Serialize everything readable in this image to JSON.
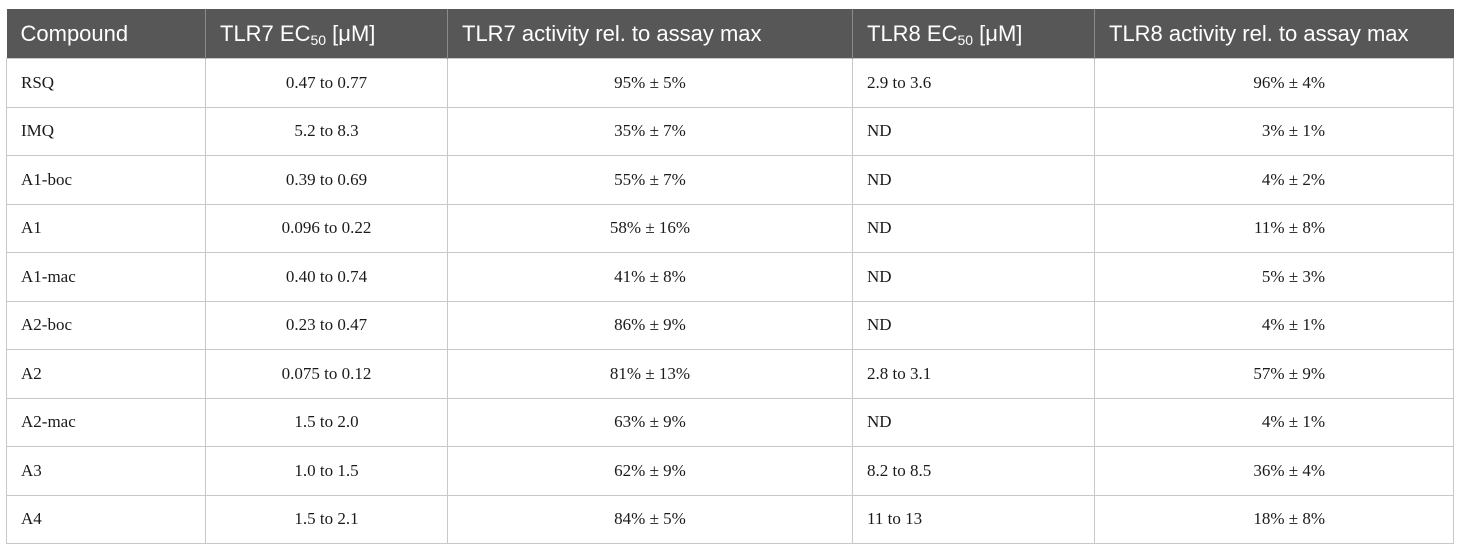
{
  "table": {
    "headers": [
      {
        "text": "Compound",
        "sub": "",
        "suffix": ""
      },
      {
        "text": "TLR7 EC",
        "sub": "50",
        "suffix": " [μM]"
      },
      {
        "text": "TLR7 activity rel. to assay max",
        "sub": "",
        "suffix": ""
      },
      {
        "text": "TLR8 EC",
        "sub": "50",
        "suffix": " [μM]"
      },
      {
        "text": "TLR8 activity rel. to assay max",
        "sub": "",
        "suffix": ""
      }
    ],
    "rows": [
      {
        "compound": "RSQ",
        "tlr7_ec50": "0.47 to 0.77",
        "tlr7_activity": "95% ± 5%",
        "tlr8_ec50": "2.9 to 3.6",
        "tlr8_activity": "96% ± 4%"
      },
      {
        "compound": "IMQ",
        "tlr7_ec50": "5.2 to 8.3",
        "tlr7_activity": "35% ± 7%",
        "tlr8_ec50": "ND",
        "tlr8_activity": "3% ± 1%"
      },
      {
        "compound": "A1-boc",
        "tlr7_ec50": "0.39 to 0.69",
        "tlr7_activity": "55% ± 7%",
        "tlr8_ec50": "ND",
        "tlr8_activity": "4% ± 2%"
      },
      {
        "compound": "A1",
        "tlr7_ec50": "0.096 to 0.22",
        "tlr7_activity": "58% ± 16%",
        "tlr8_ec50": "ND",
        "tlr8_activity": "11% ± 8%"
      },
      {
        "compound": "A1-mac",
        "tlr7_ec50": "0.40 to 0.74",
        "tlr7_activity": "41% ± 8%",
        "tlr8_ec50": "ND",
        "tlr8_activity": "5% ± 3%"
      },
      {
        "compound": "A2-boc",
        "tlr7_ec50": "0.23 to 0.47",
        "tlr7_activity": "86% ± 9%",
        "tlr8_ec50": "ND",
        "tlr8_activity": "4% ± 1%"
      },
      {
        "compound": "A2",
        "tlr7_ec50": "0.075 to 0.12",
        "tlr7_activity": "81% ± 13%",
        "tlr8_ec50": "2.8 to 3.1",
        "tlr8_activity": "57% ± 9%"
      },
      {
        "compound": "A2-mac",
        "tlr7_ec50": "1.5 to 2.0",
        "tlr7_activity": "63% ± 9%",
        "tlr8_ec50": "ND",
        "tlr8_activity": "4% ± 1%"
      },
      {
        "compound": "A3",
        "tlr7_ec50": "1.0 to 1.5",
        "tlr7_activity": "62% ± 9%",
        "tlr8_ec50": "8.2 to 8.5",
        "tlr8_activity": "36% ± 4%"
      },
      {
        "compound": "A4",
        "tlr7_ec50": "1.5 to 2.1",
        "tlr7_activity": "84% ± 5%",
        "tlr8_ec50": "11 to 13",
        "tlr8_activity": "18% ± 8%"
      }
    ]
  }
}
